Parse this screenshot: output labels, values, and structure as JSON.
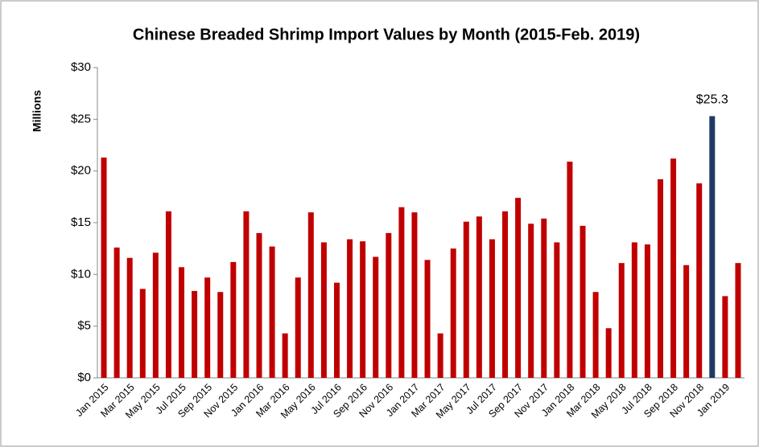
{
  "chart_data": {
    "type": "bar",
    "title": "Chinese Breaded Shrimp Import Values by Month (2015-Feb. 2019)",
    "ylabel": "Millions",
    "categories": [
      "Jan 2015",
      null,
      "Mar 2015",
      null,
      "May 2015",
      null,
      "Jul 2015",
      null,
      "Sep 2015",
      null,
      "Nov 2015",
      null,
      "Jan 2016",
      null,
      "Mar 2016",
      null,
      "May 2016",
      null,
      "Jul 2016",
      null,
      "Sep 2016",
      null,
      "Nov 2016",
      null,
      "Jan 2017",
      null,
      "Mar 2017",
      null,
      "May 2017",
      null,
      "Jul 2017",
      null,
      "Sep 2017",
      null,
      "Nov 2017",
      null,
      "Jan 2018",
      null,
      "Mar 2018",
      null,
      "May 2018",
      null,
      "Jul 2018",
      null,
      "Sep 2018",
      null,
      "Nov 2018",
      null,
      "Jan 2019",
      null
    ],
    "values": [
      21.3,
      12.6,
      11.6,
      8.6,
      12.1,
      16.1,
      10.7,
      8.4,
      9.7,
      8.3,
      11.2,
      16.1,
      14.0,
      12.7,
      4.3,
      9.7,
      16.0,
      13.1,
      9.2,
      13.4,
      13.2,
      11.7,
      14.0,
      16.5,
      16.0,
      11.4,
      4.3,
      12.5,
      15.1,
      15.6,
      13.4,
      16.1,
      17.4,
      14.9,
      15.4,
      13.1,
      20.9,
      14.7,
      8.3,
      4.8,
      11.1,
      13.1,
      12.9,
      19.2,
      21.2,
      10.9,
      18.8,
      25.3,
      7.9,
      11.1
    ],
    "value_labels": [
      null,
      null,
      null,
      null,
      null,
      null,
      null,
      null,
      null,
      null,
      null,
      null,
      null,
      null,
      null,
      null,
      null,
      null,
      null,
      null,
      null,
      null,
      null,
      null,
      null,
      null,
      null,
      null,
      null,
      null,
      null,
      null,
      null,
      null,
      null,
      null,
      null,
      null,
      null,
      null,
      null,
      null,
      null,
      null,
      null,
      null,
      null,
      "$25.3",
      null,
      null
    ],
    "colors": [
      "#c00000",
      "#c00000",
      "#c00000",
      "#c00000",
      "#c00000",
      "#c00000",
      "#c00000",
      "#c00000",
      "#c00000",
      "#c00000",
      "#c00000",
      "#c00000",
      "#c00000",
      "#c00000",
      "#c00000",
      "#c00000",
      "#c00000",
      "#c00000",
      "#c00000",
      "#c00000",
      "#c00000",
      "#c00000",
      "#c00000",
      "#c00000",
      "#c00000",
      "#c00000",
      "#c00000",
      "#c00000",
      "#c00000",
      "#c00000",
      "#c00000",
      "#c00000",
      "#c00000",
      "#c00000",
      "#c00000",
      "#c00000",
      "#c00000",
      "#c00000",
      "#c00000",
      "#c00000",
      "#c00000",
      "#c00000",
      "#c00000",
      "#c00000",
      "#c00000",
      "#c00000",
      "#c00000",
      "#1f3864",
      "#c00000",
      "#c00000"
    ],
    "ylim": [
      0,
      30
    ],
    "yticks": [
      {
        "value": 0,
        "label": "$0"
      },
      {
        "value": 5,
        "label": "$5"
      },
      {
        "value": 10,
        "label": "$10"
      },
      {
        "value": 15,
        "label": "$15"
      },
      {
        "value": 20,
        "label": "$20"
      },
      {
        "value": 25,
        "label": "$25"
      },
      {
        "value": 30,
        "label": "$30"
      }
    ],
    "grid": false
  }
}
